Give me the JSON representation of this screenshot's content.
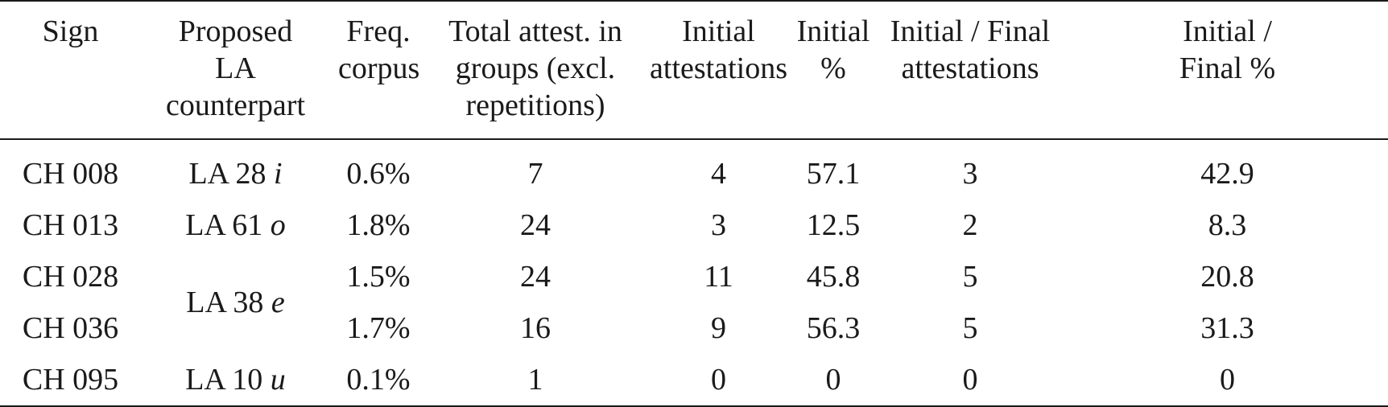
{
  "table": {
    "headers": [
      "Sign",
      "Proposed LA counterpart",
      "Freq. corpus",
      "Total attest. in groups (excl. repetitions)",
      "Initial attestations",
      "Initial %",
      "Initial / Final attestations",
      "Initial / Final %"
    ],
    "rows": [
      {
        "sign": "CH 008",
        "la_prefix": "LA 28",
        "la_value": "i",
        "freq": "0.6%",
        "total": "7",
        "initial": "4",
        "initial_pct": "57.1",
        "initial_final": "3",
        "initial_final_pct": "42.9"
      },
      {
        "sign": "CH 013",
        "la_prefix": "LA 61",
        "la_value": "o",
        "freq": "1.8%",
        "total": "24",
        "initial": "3",
        "initial_pct": "12.5",
        "initial_final": "2",
        "initial_final_pct": "8.3"
      },
      {
        "sign": "CH 028",
        "la_prefix": "LA 38",
        "la_value": "e",
        "freq": "1.5%",
        "total": "24",
        "initial": "11",
        "initial_pct": "45.8",
        "initial_final": "5",
        "initial_final_pct": "20.8"
      },
      {
        "sign": "CH 036",
        "la_prefix": "",
        "la_value": "",
        "freq": "1.7%",
        "total": "16",
        "initial": "9",
        "initial_pct": "56.3",
        "initial_final": "5",
        "initial_final_pct": "31.3"
      },
      {
        "sign": "CH 095",
        "la_prefix": "LA 10",
        "la_value": "u",
        "freq": "0.1%",
        "total": "1",
        "initial": "0",
        "initial_pct": "0",
        "initial_final": "0",
        "initial_final_pct": "0"
      }
    ]
  }
}
